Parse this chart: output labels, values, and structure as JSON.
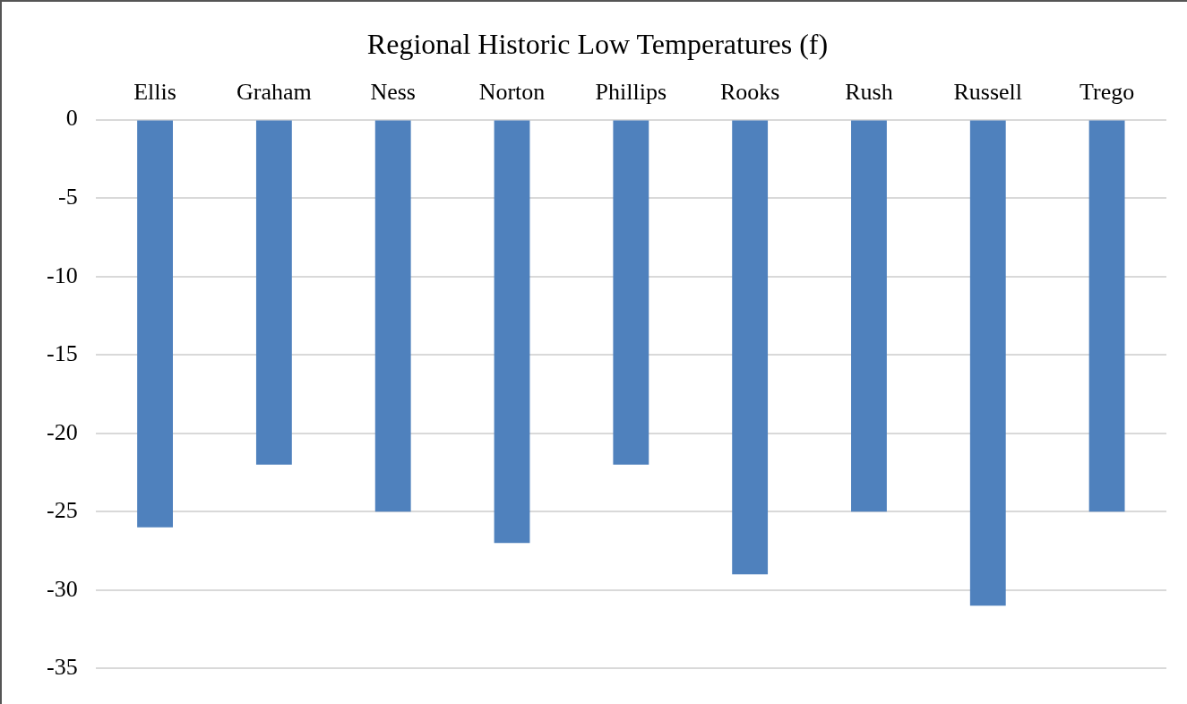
{
  "chart_data": {
    "type": "bar",
    "title": "Regional Historic Low Temperatures (f)",
    "categories": [
      "Ellis",
      "Graham",
      "Ness",
      "Norton",
      "Phillips",
      "Rooks",
      "Rush",
      "Russell",
      "Trego"
    ],
    "values": [
      -26,
      -22,
      -25,
      -27,
      -22,
      -29,
      -25,
      -31,
      -25
    ],
    "color": "#4f81bd",
    "ylim": [
      -35,
      0
    ],
    "yticks": [
      0,
      -5,
      -10,
      -15,
      -20,
      -25,
      -30,
      -35
    ],
    "grid": "y",
    "legend": false
  }
}
